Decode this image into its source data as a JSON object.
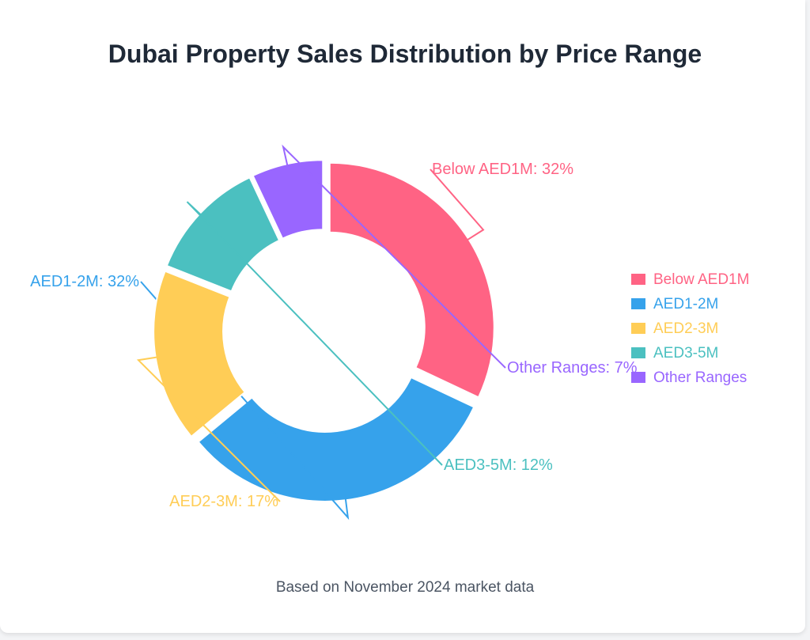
{
  "chart_data": {
    "type": "pie",
    "title": "Dubai Property Sales Distribution by Price Range",
    "footnote": "Based on November 2024 market data",
    "legend_position": "right",
    "slices": [
      {
        "label": "Below AED1M",
        "value": 32,
        "color": "#ff6384"
      },
      {
        "label": "AED1-2M",
        "value": 32,
        "color": "#36a2eb"
      },
      {
        "label": "AED2-3M",
        "value": 17,
        "color": "#ffcd56"
      },
      {
        "label": "AED3-5M",
        "value": 12,
        "color": "#4bc0c0"
      },
      {
        "label": "Other Ranges",
        "value": 7,
        "color": "#9966ff"
      }
    ]
  }
}
